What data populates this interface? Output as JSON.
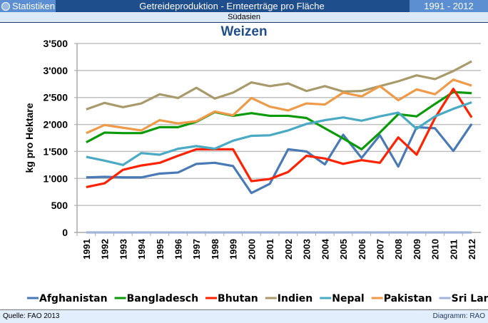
{
  "header": {
    "left": "Statistiken",
    "center": "Getreideproduktion - Ernteerträge pro Fläche",
    "right": "1991 - 2012",
    "subtitle": "Südasien"
  },
  "footer": {
    "source": "Quelle: FAO 2013",
    "credit": "Diagramm: RAO"
  },
  "chart_data": {
    "type": "line",
    "title": "Weizen",
    "xlabel": "",
    "ylabel": "kg pro Hektare",
    "ylim": [
      0,
      3500
    ],
    "yticks": [
      "0",
      "500",
      "1'000",
      "1'500",
      "2'000",
      "2'500",
      "3'000",
      "3'500"
    ],
    "categories": [
      "1991",
      "1992",
      "1993",
      "1994",
      "1995",
      "1996",
      "1997",
      "1998",
      "1999",
      "2000",
      "2001",
      "2002",
      "2003",
      "2004",
      "2005",
      "2006",
      "2007",
      "2008",
      "2009",
      "2010",
      "2011",
      "2012"
    ],
    "legend": "bottom",
    "series": [
      {
        "name": "Afghanistan",
        "color": "#4a7ab5",
        "values": [
          1020,
          1030,
          1020,
          1020,
          1090,
          1110,
          1270,
          1290,
          1230,
          730,
          900,
          1540,
          1500,
          1260,
          1810,
          1380,
          1800,
          1220,
          1950,
          1930,
          1510,
          2010
        ]
      },
      {
        "name": "Bangladesch",
        "color": "#0a9a0a",
        "values": [
          1670,
          1850,
          1840,
          1840,
          1950,
          1950,
          2050,
          2230,
          2160,
          2210,
          2160,
          2160,
          2120,
          1930,
          1740,
          1540,
          1850,
          2190,
          2150,
          2380,
          2600,
          2580
        ]
      },
      {
        "name": "Bhutan",
        "color": "#ff2200",
        "values": [
          840,
          910,
          1160,
          1240,
          1290,
          1420,
          1540,
          1540,
          1540,
          950,
          990,
          1120,
          1420,
          1370,
          1270,
          1340,
          1290,
          1760,
          1440,
          2120,
          2660,
          2130
        ]
      },
      {
        "name": "Indien",
        "color": "#a89a6a",
        "values": [
          2280,
          2400,
          2320,
          2390,
          2560,
          2490,
          2680,
          2480,
          2590,
          2780,
          2710,
          2760,
          2620,
          2710,
          2610,
          2620,
          2710,
          2800,
          2910,
          2840,
          2990,
          3170
        ]
      },
      {
        "name": "Nepal",
        "color": "#4aaac4",
        "values": [
          1400,
          1330,
          1250,
          1470,
          1440,
          1550,
          1600,
          1550,
          1700,
          1790,
          1800,
          1890,
          2010,
          2080,
          2130,
          2070,
          2150,
          2220,
          1920,
          2150,
          2290,
          2410
        ]
      },
      {
        "name": "Pakistan",
        "color": "#ee9a48",
        "values": [
          1840,
          1990,
          1940,
          1890,
          2080,
          2020,
          2060,
          2240,
          2170,
          2490,
          2330,
          2260,
          2390,
          2370,
          2590,
          2520,
          2710,
          2450,
          2650,
          2560,
          2830,
          2720
        ]
      },
      {
        "name": "Sri Lanka",
        "color": "#a0b4da",
        "values": [
          0,
          0,
          0,
          0,
          0,
          0,
          0,
          0,
          0,
          0,
          0,
          0,
          0,
          0,
          0,
          0,
          0,
          0,
          0,
          0,
          0,
          0
        ]
      }
    ]
  }
}
